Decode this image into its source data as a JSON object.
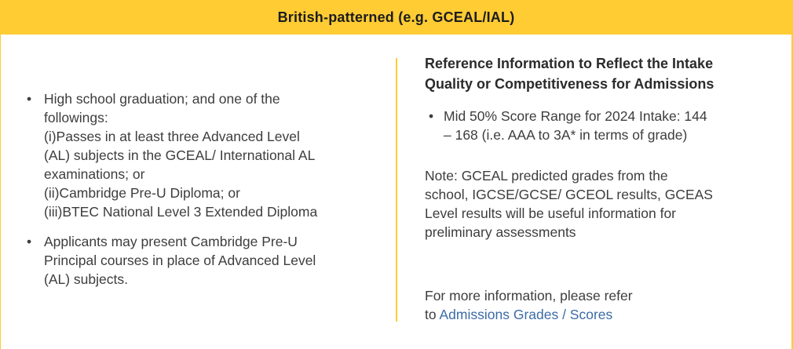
{
  "header": {
    "title": "British-patterned (e.g. GCEAL/IAL)"
  },
  "colors": {
    "accent_yellow": "#ffcc33",
    "body_text": "#3d3d3d",
    "heading_text": "#2b2b2b",
    "link_blue": "#3b6ba5"
  },
  "left_column": {
    "bullets": [
      "High school graduation; and one of the\nfollowings:\n(i)Passes in at least three Advanced Level\n(AL) subjects in the GCEAL/ International AL\nexaminations; or\n(ii)Cambridge Pre-U Diploma; or\n(iii)BTEC National Level 3 Extended Diploma",
      "Applicants may present Cambridge Pre-U\nPrincipal courses in place of Advanced Level\n(AL) subjects."
    ],
    "bullet_glyph": "•"
  },
  "right_column": {
    "heading": "Reference Information to Reflect the Intake\nQuality or Competitiveness for Admissions",
    "bullets": [
      "Mid 50% Score Range for 2024 Intake: 144\n– 168 (i.e. AAA to 3A* in terms of grade)"
    ],
    "bullet_glyph": "•",
    "note": "Note: GCEAL predicted grades from the\nschool, IGCSE/GCSE/ GCEOL results, GCEAS\nLevel results will be useful information for\npreliminary assessments",
    "footer": {
      "line1": "For more information, please refer",
      "line2_prefix": "to ",
      "link_label": "Admissions Grades / Scores"
    }
  }
}
